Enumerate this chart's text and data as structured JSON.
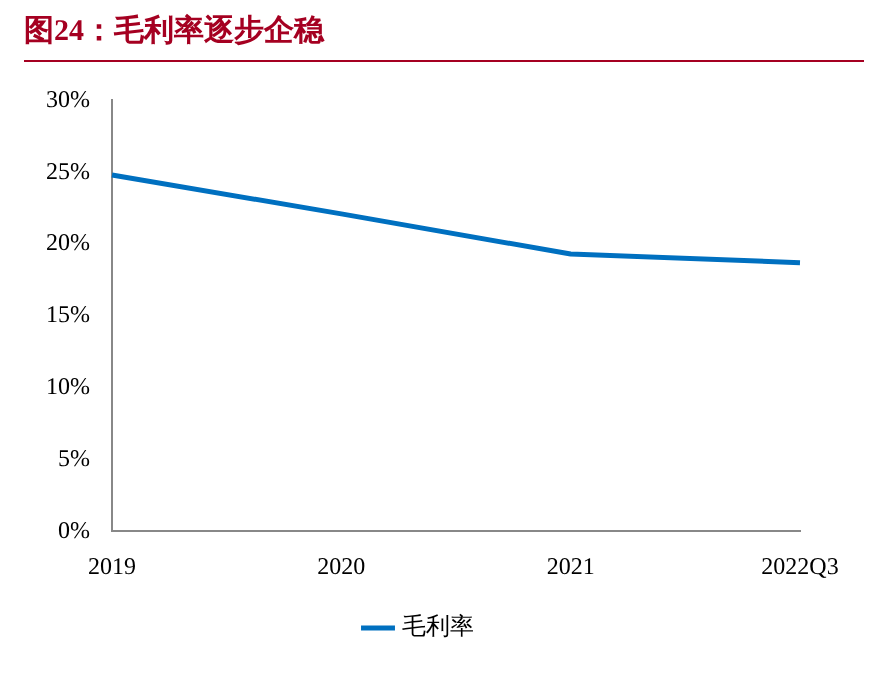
{
  "chart_data": {
    "type": "line",
    "title": "图24：毛利率逐步企稳",
    "categories": [
      "2019",
      "2020",
      "2021",
      "2022Q3"
    ],
    "series": [
      {
        "name": "毛利率",
        "color": "#0070c0",
        "values": [
          24.8,
          22.1,
          19.3,
          18.7
        ]
      }
    ],
    "ylim": [
      0,
      30
    ],
    "yticks": [
      {
        "value": 0,
        "label": "0%"
      },
      {
        "value": 5,
        "label": "5%"
      },
      {
        "value": 10,
        "label": "10%"
      },
      {
        "value": 15,
        "label": "15%"
      },
      {
        "value": 20,
        "label": "20%"
      },
      {
        "value": 25,
        "label": "25%"
      },
      {
        "value": 30,
        "label": "30%"
      }
    ],
    "grid": false,
    "legend": "bottom",
    "marker": "none",
    "line_style": "solid"
  }
}
